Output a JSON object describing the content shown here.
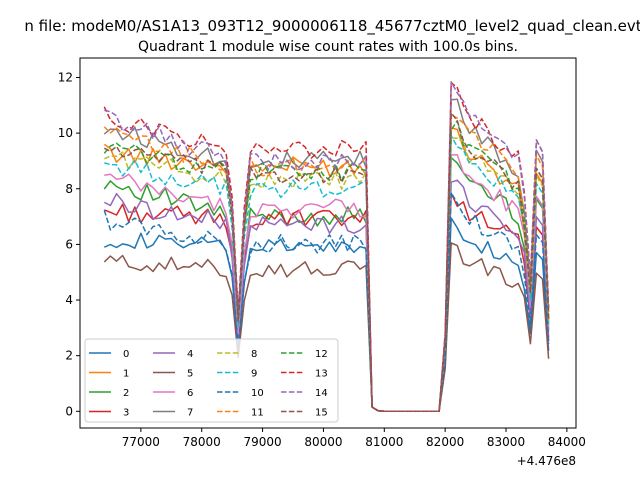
{
  "chart_data": {
    "type": "line",
    "suptitle": "n file: modeM0/AS1A13_093T12_9000006118_45677cztM0_level2_quad_clean.evt",
    "title": "Quadrant 1 module wise count rates with 100.0s bins.",
    "xlabel": "",
    "ylabel": "",
    "offset_label": "+4.476e8",
    "xlim": [
      76000,
      84150
    ],
    "ylim": [
      -0.6,
      12.7
    ],
    "xticks": [
      77000,
      78000,
      79000,
      80000,
      81000,
      82000,
      83000,
      84000
    ],
    "xtick_labels": [
      "77000",
      "78000",
      "79000",
      "80000",
      "81000",
      "82000",
      "83000",
      "84000"
    ],
    "yticks": [
      0,
      2,
      4,
      6,
      8,
      10,
      12
    ],
    "ytick_labels": [
      "0",
      "2",
      "4",
      "6",
      "8",
      "10",
      "12"
    ],
    "grid": false,
    "legend_position": "lower-left",
    "legend_columns": 4,
    "time_grid": {
      "segments": [
        [
          76400,
          80700
        ],
        [
          80800,
          81900
        ],
        [
          82000,
          83700
        ]
      ],
      "step": 100
    },
    "series": [
      {
        "name": "0",
        "color": "#1f77b4",
        "dash": "solid",
        "high": 6.2,
        "low": 5.9,
        "amp": 0.3
      },
      {
        "name": "1",
        "color": "#ff7f0e",
        "dash": "solid",
        "high": 9.3,
        "low": 8.8,
        "amp": 0.35
      },
      {
        "name": "2",
        "color": "#2ca02c",
        "dash": "solid",
        "high": 8.3,
        "low": 7.0,
        "amp": 0.35
      },
      {
        "name": "3",
        "color": "#d62728",
        "dash": "solid",
        "high": 7.2,
        "low": 6.9,
        "amp": 0.35
      },
      {
        "name": "4",
        "color": "#9467bd",
        "dash": "solid",
        "high": 7.6,
        "low": 6.7,
        "amp": 0.35
      },
      {
        "name": "5",
        "color": "#8c564b",
        "dash": "solid",
        "high": 5.4,
        "low": 5.1,
        "amp": 0.3
      },
      {
        "name": "6",
        "color": "#e377c2",
        "dash": "solid",
        "high": 8.4,
        "low": 7.3,
        "amp": 0.35
      },
      {
        "name": "7",
        "color": "#7f7f7f",
        "dash": "solid",
        "high": 10.2,
        "low": 9.0,
        "amp": 0.35
      },
      {
        "name": "8",
        "color": "#bcbd22",
        "dash": "dashed",
        "high": 9.2,
        "low": 8.3,
        "amp": 0.35
      },
      {
        "name": "9",
        "color": "#17becf",
        "dash": "dashed",
        "high": 8.9,
        "low": 8.0,
        "amp": 0.35
      },
      {
        "name": "10",
        "color": "#1f77b4",
        "dash": "dashed",
        "high": 6.9,
        "low": 6.0,
        "amp": 0.35
      },
      {
        "name": "11",
        "color": "#ff7f0e",
        "dash": "dashed",
        "high": 10.0,
        "low": 8.8,
        "amp": 0.35
      },
      {
        "name": "12",
        "color": "#2ca02c",
        "dash": "dashed",
        "high": 9.5,
        "low": 8.6,
        "amp": 0.35
      },
      {
        "name": "13",
        "color": "#d62728",
        "dash": "dashed",
        "high": 10.6,
        "low": 9.4,
        "amp": 0.35
      },
      {
        "name": "14",
        "color": "#9467bd",
        "dash": "dashed",
        "high": 10.6,
        "low": 9.0,
        "amp": 0.35
      },
      {
        "name": "15",
        "color": "#8c564b",
        "dash": "dashed",
        "high": 9.5,
        "low": 8.5,
        "amp": 0.35
      }
    ]
  }
}
